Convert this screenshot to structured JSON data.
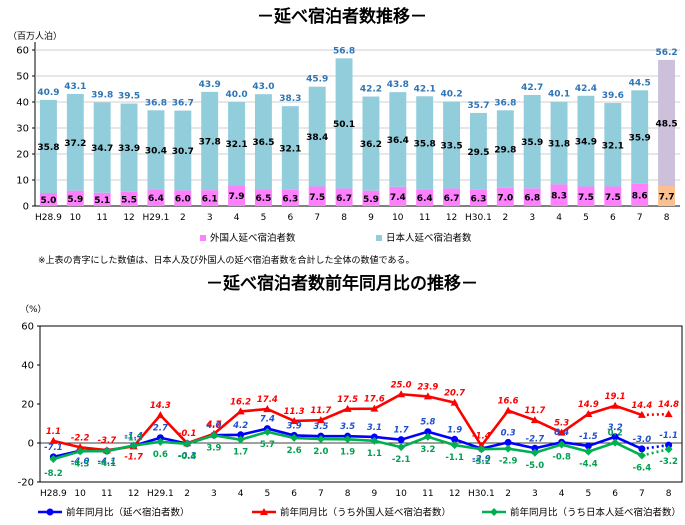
{
  "chart_data": [
    {
      "type": "bar",
      "stacked": true,
      "title": "－延べ宿泊者数推移－",
      "ylabel": "（百万人泊）",
      "ylim": [
        0,
        60
      ],
      "yticks": [
        0,
        10,
        20,
        30,
        40,
        50,
        60
      ],
      "categories": [
        "H28.9",
        "10",
        "11",
        "12",
        "H29.1",
        "2",
        "3",
        "4",
        "5",
        "6",
        "7",
        "8",
        "9",
        "10",
        "11",
        "12",
        "H30.1",
        "2",
        "3",
        "4",
        "5",
        "6",
        "7",
        "8"
      ],
      "series": [
        {
          "name": "外国人延べ宿泊者数",
          "color": "#ff80ff",
          "values": [
            5.0,
            5.9,
            5.1,
            5.5,
            6.4,
            6.0,
            6.1,
            7.9,
            6.5,
            6.3,
            7.5,
            6.7,
            5.9,
            7.4,
            6.4,
            6.7,
            6.3,
            7.0,
            6.8,
            8.3,
            7.5,
            7.5,
            8.6,
            7.7
          ]
        },
        {
          "name": "日本人延べ宿泊者数",
          "color": "#92cddc",
          "values": [
            35.8,
            37.2,
            34.7,
            33.9,
            30.4,
            30.7,
            37.8,
            32.1,
            36.5,
            32.1,
            38.4,
            50.1,
            36.2,
            36.4,
            35.8,
            33.5,
            29.5,
            29.8,
            35.9,
            31.8,
            34.9,
            32.1,
            35.9,
            48.5
          ]
        }
      ],
      "totals": [
        40.9,
        43.1,
        39.8,
        39.5,
        36.8,
        36.7,
        43.9,
        40.0,
        43.0,
        38.3,
        45.9,
        56.8,
        42.2,
        43.8,
        42.1,
        40.2,
        35.7,
        36.8,
        42.7,
        40.1,
        42.4,
        39.6,
        44.5,
        56.2
      ],
      "last_bar_colors": {
        "foreign": "#fac090",
        "japanese": "#ccc0da"
      },
      "legend": [
        "外国人延べ宿泊者数",
        "日本人延べ宿泊者数"
      ],
      "note": "※上表の青字にした数値は、日本人及び外国人の延べ宿泊者数を合計した全体の数値である。"
    },
    {
      "type": "line",
      "title": "－延べ宿泊者数前年同月比の推移－",
      "ylabel": "（%）",
      "ylim": [
        -20,
        60
      ],
      "yticks": [
        -20,
        0,
        20,
        40,
        60
      ],
      "categories": [
        "H28.9",
        "10",
        "11",
        "12",
        "H29.1",
        "2",
        "3",
        "4",
        "5",
        "6",
        "7",
        "8",
        "9",
        "10",
        "11",
        "12",
        "H30.1",
        "2",
        "3",
        "4",
        "5",
        "6",
        "7",
        "8"
      ],
      "series": [
        {
          "name": "前年同月比（延べ宿泊者数）",
          "color": "#0000ff",
          "values": [
            -7.1,
            -4.0,
            -4.1,
            -1.4,
            2.7,
            -0.3,
            4.0,
            4.2,
            7.4,
            3.9,
            3.5,
            3.5,
            3.1,
            1.7,
            5.8,
            1.9,
            -2.9,
            0.3,
            -2.7,
            0.4,
            -1.5,
            3.2,
            -3.0,
            -1.1
          ],
          "labels": [
            "-7.1",
            "-4.0",
            "-4.1",
            "-1.4",
            "2.7",
            "-0.3",
            "4.0",
            "4.2",
            "7.4",
            "3.9",
            "3.5",
            "3.5",
            "3.1",
            "1.7",
            "5.8",
            "1.9",
            "-2.9",
            "0.3",
            "-2.7",
            "0.4",
            "-1.5",
            "3.2",
            "-3.0",
            "-1.1"
          ]
        },
        {
          "name": "前年同月比（うち外国人延べ宿泊者数）",
          "color": "#ff0000",
          "values": [
            1.1,
            -2.2,
            -3.7,
            -1.7,
            14.3,
            -0.1,
            4.7,
            16.2,
            17.4,
            11.3,
            11.7,
            17.5,
            17.6,
            25.0,
            23.9,
            20.7,
            -1.4,
            16.6,
            11.7,
            5.3,
            14.9,
            19.1,
            14.4,
            14.8
          ],
          "labels": [
            "1.1",
            "-2.2",
            "-3.7",
            "-1.7",
            "14.3",
            "-0.1",
            "4.7",
            "16.2",
            "17.4",
            "11.3",
            "11.7",
            "17.5",
            "17.6",
            "25.0",
            "23.9",
            "20.7",
            "-1.4",
            "16.6",
            "11.7",
            "5.3",
            "14.9",
            "19.1",
            "14.4",
            "14.8"
          ]
        },
        {
          "name": "前年同月比（うち日本人延べ宿泊者数）",
          "color": "#00b050",
          "values": [
            -8.2,
            -4.3,
            -4.1,
            -1.3,
            0.6,
            -0.4,
            3.9,
            1.7,
            5.7,
            2.6,
            2.0,
            1.9,
            1.1,
            -2.1,
            3.2,
            -1.1,
            -3.2,
            -2.9,
            -5.0,
            -0.8,
            -4.4,
            0.2,
            -6.4,
            -3.2
          ],
          "labels": [
            "-8.2",
            "-4.3",
            "-4.1",
            "-1.3",
            "0.6",
            "-0.4",
            "3.9",
            "1.7",
            "5.7",
            "2.6",
            "2.0",
            "1.9",
            "1.1",
            "-2.1",
            "3.2",
            "-1.1",
            "-3.2",
            "-2.9",
            "-5.0",
            "-0.8",
            "-4.4",
            "0.2",
            "-6.4",
            "-3.2"
          ]
        }
      ],
      "legend": [
        "前年同月比（延べ宿泊者数）",
        "前年同月比（うち外国人延べ宿泊者数）",
        "前年同月比（うち日本人延べ宿泊者数）"
      ]
    }
  ]
}
